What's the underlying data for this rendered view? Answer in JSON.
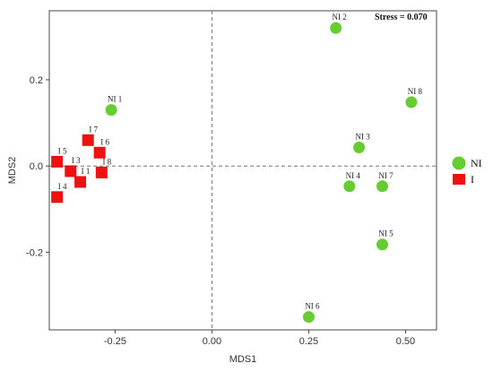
{
  "chart_data": {
    "type": "scatter",
    "xlabel": "MDS1",
    "ylabel": "MDS2",
    "xlim": [
      -0.42,
      0.58
    ],
    "ylim": [
      -0.38,
      0.36
    ],
    "x_ticks": [
      -0.25,
      0.0,
      0.25,
      0.5
    ],
    "x_tick_labels": [
      "-0.25",
      "0.00",
      "0.25",
      "0.50"
    ],
    "y_ticks": [
      -0.2,
      0.0,
      0.2
    ],
    "y_tick_labels": [
      "-0.2",
      "0.0",
      "0.2"
    ],
    "annotation": "Stress = 0.070",
    "legend_placement": "right",
    "series": [
      {
        "name": "NI",
        "color": "#66cc33",
        "marker": "circle",
        "points": [
          {
            "label": "NI 1",
            "x": -0.26,
            "y": 0.13
          },
          {
            "label": "NI 2",
            "x": 0.32,
            "y": 0.32
          },
          {
            "label": "NI 3",
            "x": 0.38,
            "y": 0.043
          },
          {
            "label": "NI 4",
            "x": 0.355,
            "y": -0.047
          },
          {
            "label": "NI 5",
            "x": 0.44,
            "y": -0.182
          },
          {
            "label": "NI 6",
            "x": 0.25,
            "y": -0.35
          },
          {
            "label": "NI 7",
            "x": 0.44,
            "y": -0.047
          },
          {
            "label": "NI 8",
            "x": 0.515,
            "y": 0.148
          }
        ]
      },
      {
        "name": "I",
        "color": "#ee1111",
        "marker": "square",
        "points": [
          {
            "label": "I 1",
            "x": -0.34,
            "y": -0.037
          },
          {
            "label": "I 3",
            "x": -0.365,
            "y": -0.012
          },
          {
            "label": "I 4",
            "x": -0.4,
            "y": -0.072
          },
          {
            "label": "I 5",
            "x": -0.4,
            "y": 0.01
          },
          {
            "label": "I 6",
            "x": -0.29,
            "y": 0.031
          },
          {
            "label": "I 7",
            "x": -0.32,
            "y": 0.06
          },
          {
            "label": "I 8",
            "x": -0.285,
            "y": -0.015
          }
        ]
      }
    ]
  }
}
